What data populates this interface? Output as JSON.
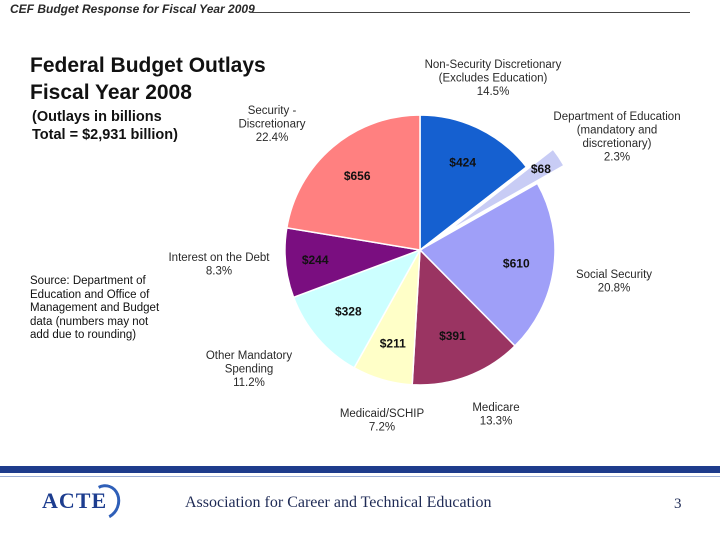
{
  "header": {
    "title": "CEF Budget Response for Fiscal Year 2009"
  },
  "chart_data": {
    "type": "pie",
    "title_line1": "Federal Budget Outlays",
    "title_line2": "Fiscal Year 2008",
    "subtitle_line1": "(Outlays in billions",
    "subtitle_line2": "Total = $2,931 billion)",
    "source_note": "Source: Department of Education and Office of Management and Budget data (numbers may not add due to rounding)",
    "slices": [
      {
        "name": "Non-Security Discretionary (Excludes Education)",
        "label_lines": [
          "Non-Security Discretionary",
          "(Excludes Education)",
          "14.5%"
        ],
        "value": 424,
        "percent": 14.5,
        "value_label": "$424",
        "color": "#1560d0",
        "exploded": false
      },
      {
        "name": "Department of Education (mandatory and discretionary)",
        "label_lines": [
          "Department of Education",
          "(mandatory and",
          "discretionary)",
          "2.3%"
        ],
        "value": 68,
        "percent": 2.3,
        "value_label": "$68",
        "color": "#c8ccf5",
        "exploded": true
      },
      {
        "name": "Social Security",
        "label_lines": [
          "Social Security",
          "20.8%"
        ],
        "value": 610,
        "percent": 20.8,
        "value_label": "$610",
        "color": "#9f9ff8",
        "exploded": false
      },
      {
        "name": "Medicare",
        "label_lines": [
          "Medicare",
          "13.3%"
        ],
        "value": 391,
        "percent": 13.3,
        "value_label": "$391",
        "color": "#9a3462",
        "exploded": false
      },
      {
        "name": "Medicaid/SCHIP",
        "label_lines": [
          "Medicaid/SCHIP",
          "7.2%"
        ],
        "value": 211,
        "percent": 7.2,
        "value_label": "$211",
        "color": "#ffffc8",
        "exploded": false
      },
      {
        "name": "Other Mandatory Spending",
        "label_lines": [
          "Other Mandatory",
          "Spending",
          "11.2%"
        ],
        "value": 328,
        "percent": 11.2,
        "value_label": "$328",
        "color": "#ccffff",
        "exploded": false
      },
      {
        "name": "Interest on the Debt",
        "label_lines": [
          "Interest on the Debt",
          "8.3%"
        ],
        "value": 244,
        "percent": 8.3,
        "value_label": "$244",
        "color": "#7a0e80",
        "exploded": false
      },
      {
        "name": "Security - Discretionary",
        "label_lines": [
          "Security -",
          "Discretionary",
          "22.4%"
        ],
        "value": 656,
        "percent": 22.4,
        "value_label": "$656",
        "color": "#ff8080",
        "exploded": false
      }
    ]
  },
  "footer": {
    "logo_text": "ACTE",
    "organization": "Association for Career and Technical Education",
    "page_number": "3"
  }
}
